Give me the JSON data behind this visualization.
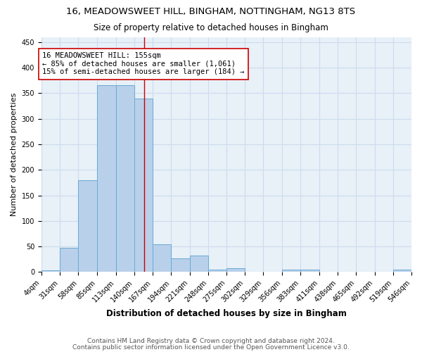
{
  "title1": "16, MEADOWSWEET HILL, BINGHAM, NOTTINGHAM, NG13 8TS",
  "title2": "Size of property relative to detached houses in Bingham",
  "xlabel": "Distribution of detached houses by size in Bingham",
  "ylabel": "Number of detached properties",
  "footnote1": "Contains HM Land Registry data © Crown copyright and database right 2024.",
  "footnote2": "Contains public sector information licensed under the Open Government Licence v3.0.",
  "annotation_line1": "16 MEADOWSWEET HILL: 155sqm",
  "annotation_line2": "← 85% of detached houses are smaller (1,061)",
  "annotation_line3": "15% of semi-detached houses are larger (184) →",
  "bar_edges": [
    4,
    31,
    58,
    85,
    113,
    140,
    167,
    194,
    221,
    248,
    275,
    302,
    329,
    356,
    383,
    411,
    438,
    465,
    492,
    519,
    546
  ],
  "bar_heights": [
    3,
    48,
    180,
    365,
    365,
    340,
    55,
    27,
    32,
    5,
    7,
    0,
    0,
    5,
    5,
    0,
    0,
    0,
    0,
    5,
    0
  ],
  "bar_color": "#b8d0ea",
  "bar_edge_color": "#6aaad4",
  "grid_color": "#ccdcee",
  "bg_color": "#e8f0f8",
  "property_line_x": 155,
  "property_line_color": "#cc0000",
  "annotation_box_color": "#cc0000",
  "ylim": [
    0,
    460
  ],
  "yticks": [
    0,
    50,
    100,
    150,
    200,
    250,
    300,
    350,
    400,
    450
  ],
  "title1_fontsize": 9.5,
  "title2_fontsize": 8.5,
  "xlabel_fontsize": 8.5,
  "ylabel_fontsize": 8,
  "tick_fontsize": 7,
  "annot_fontsize": 7.5,
  "footnote_fontsize": 6.5
}
